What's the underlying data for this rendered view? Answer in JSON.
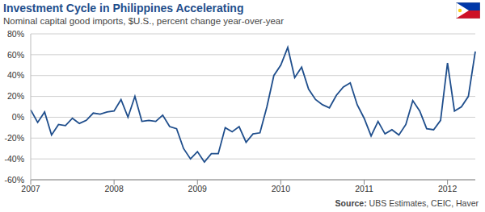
{
  "chart_data": {
    "type": "line",
    "title": "Investment Cycle in Philippines Accelerating",
    "subtitle": "Nominal capital good imports, $U.S., percent change year-over-year",
    "source": "Source: UBS Estimates, CEIC, Haver",
    "categories": [
      "2007",
      null,
      null,
      null,
      null,
      null,
      null,
      null,
      null,
      null,
      null,
      null,
      "2008",
      null,
      null,
      null,
      null,
      null,
      null,
      null,
      null,
      null,
      null,
      null,
      "2009",
      null,
      null,
      null,
      null,
      null,
      null,
      null,
      null,
      null,
      null,
      null,
      "2010",
      null,
      null,
      null,
      null,
      null,
      null,
      null,
      null,
      null,
      null,
      null,
      "2011",
      null,
      null,
      null,
      null,
      null,
      null,
      null,
      null,
      null,
      null,
      null,
      "2012",
      null,
      null,
      null,
      null
    ],
    "values": [
      7,
      -5,
      5,
      -17,
      -7,
      -8,
      -1,
      -6,
      -3,
      4,
      3,
      5,
      6,
      17,
      0,
      20,
      -4,
      -3,
      -4,
      2,
      -9,
      -11,
      -30,
      -40,
      -33,
      -43,
      -35,
      -35,
      -10,
      -14,
      -9,
      -24,
      -16,
      -15,
      10,
      40,
      50,
      67,
      38,
      48,
      27,
      17,
      12,
      9,
      21,
      29,
      33,
      12,
      -1,
      -18,
      -4,
      -16,
      -12,
      -17,
      -7,
      16,
      6,
      -11,
      -12,
      -3,
      52,
      6,
      10,
      20,
      63
    ],
    "color": "#1f4e8c",
    "ylim": [
      -60,
      80
    ],
    "yticks": [
      {
        "value": -60,
        "label": "-60%"
      },
      {
        "value": -40,
        "label": "-40%"
      },
      {
        "value": -20,
        "label": "-20%"
      },
      {
        "value": 0,
        "label": "0%"
      },
      {
        "value": 20,
        "label": "20%"
      },
      {
        "value": 40,
        "label": "40%"
      },
      {
        "value": 60,
        "label": "60%"
      },
      {
        "value": 80,
        "label": "80%"
      }
    ],
    "grid": true
  }
}
